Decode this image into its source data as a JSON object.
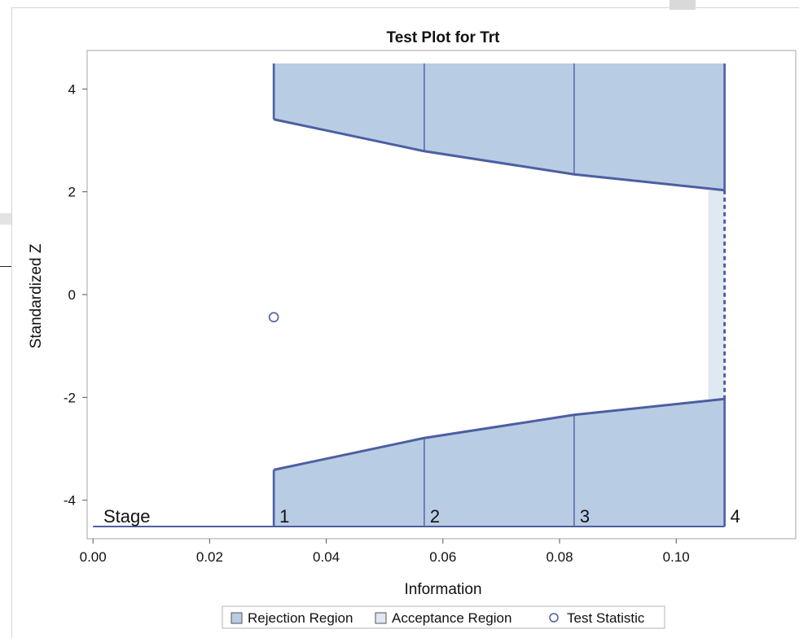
{
  "chart_data": {
    "type": "area",
    "title": "Test Plot for Trt",
    "xlabel": "Information",
    "ylabel": "Standardized Z",
    "xlim": [
      -0.001,
      0.1205
    ],
    "ylim": [
      -4.75,
      4.75
    ],
    "xticks": [
      0.0,
      0.02,
      0.04,
      0.06,
      0.08,
      0.1
    ],
    "xtick_labels": [
      "0.00",
      "0.02",
      "0.04",
      "0.06",
      "0.08",
      "0.10"
    ],
    "yticks": [
      -4,
      -2,
      0,
      2,
      4
    ],
    "ytick_labels": [
      "-4",
      "-2",
      "0",
      "2",
      "4"
    ],
    "grid": false,
    "stages": {
      "label": "Stage",
      "x": [
        0.031,
        0.0568,
        0.0825,
        0.1083
      ],
      "labels": [
        "1",
        "2",
        "3",
        "4"
      ]
    },
    "upper_boundary": {
      "name": "Rejection Region",
      "x": [
        0.031,
        0.0568,
        0.0825,
        0.1083
      ],
      "y": [
        3.41,
        2.79,
        2.34,
        2.03
      ]
    },
    "lower_boundary": {
      "name": "Rejection Region",
      "x": [
        0.031,
        0.0568,
        0.0825,
        0.1083
      ],
      "y": [
        -3.41,
        -2.79,
        -2.34,
        -2.03
      ]
    },
    "acceptance_region": {
      "name": "Acceptance Region",
      "x": [
        0.1055,
        0.1083
      ],
      "y": [
        -2.03,
        2.03
      ]
    },
    "test_statistic": {
      "name": "Test Statistic",
      "x": 0.031,
      "y": -0.44
    },
    "colors": {
      "rejection_fill": "#b8cce4",
      "boundary_line": "#4d5ea1",
      "acceptance_fill": "#dfe8f3",
      "frame": "#a6a6a6",
      "text": "#111111"
    },
    "legend": {
      "placement": "bottom",
      "items": [
        {
          "label": "Rejection Region",
          "symbol": "filled-square"
        },
        {
          "label": "Acceptance Region",
          "symbol": "light-square"
        },
        {
          "label": "Test Statistic",
          "symbol": "circle"
        }
      ]
    }
  }
}
